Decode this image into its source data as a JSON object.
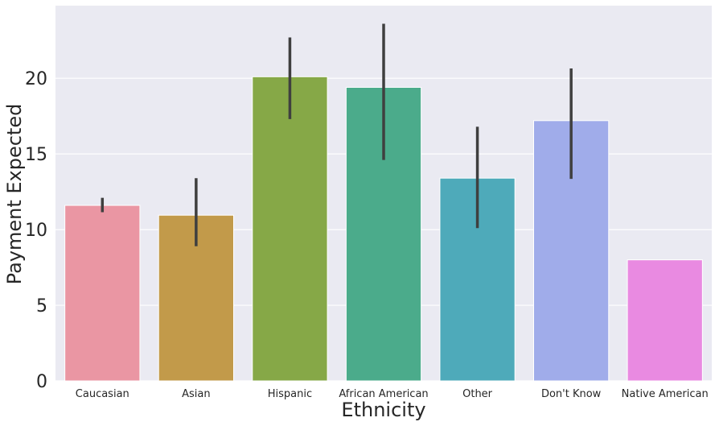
{
  "chart_data": {
    "type": "bar",
    "xlabel": "Ethnicity",
    "ylabel": "Payment Expected",
    "categories": [
      "Caucasian",
      "Asian",
      "Hispanic",
      "African American",
      "Other",
      "Don't Know",
      "Native American"
    ],
    "values": [
      11.6,
      10.95,
      20.1,
      19.4,
      13.4,
      17.2,
      8.0
    ],
    "error_low": [
      11.15,
      8.9,
      17.3,
      14.6,
      10.1,
      13.35,
      null
    ],
    "error_high": [
      12.1,
      13.4,
      22.7,
      23.6,
      16.8,
      20.65,
      null
    ],
    "ylim": [
      0,
      24.8
    ],
    "yticks": [
      0,
      5,
      10,
      15,
      20
    ],
    "grid": true,
    "legend": "none",
    "colors": [
      "#ea96a3",
      "#c29a4a",
      "#86a847",
      "#4bab8b",
      "#4eaaba",
      "#a0acea",
      "#e98ae1"
    ],
    "background": "#eaeaf2",
    "error_bar_color": "#3f3f3f"
  }
}
